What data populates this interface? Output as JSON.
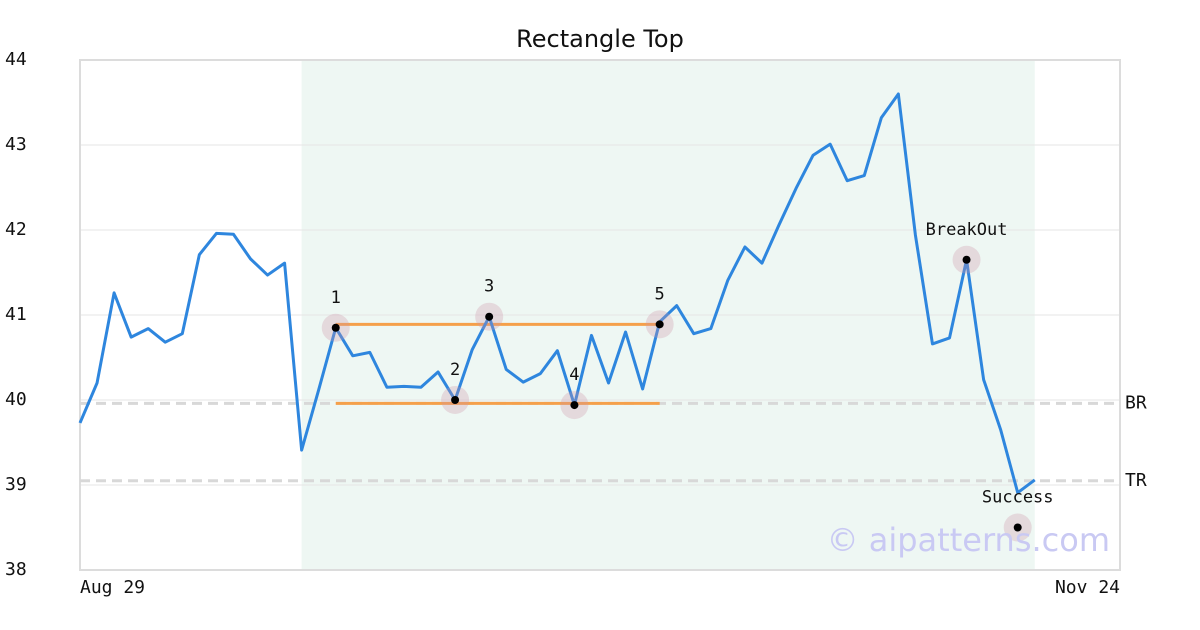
{
  "chart_data": {
    "type": "line",
    "title": "Rectangle Top",
    "categories": [
      "Aug 29",
      null,
      null,
      null,
      null,
      null,
      null,
      null,
      null,
      null,
      null,
      null,
      null,
      null,
      null,
      null,
      null,
      null,
      null,
      null,
      null,
      null,
      null,
      null,
      null,
      null,
      null,
      null,
      null,
      null,
      null,
      null,
      null,
      null,
      null,
      null,
      null,
      null,
      null,
      null,
      null,
      null,
      null,
      null,
      null,
      null,
      null,
      null,
      null,
      null,
      null,
      null,
      null,
      null,
      null,
      null,
      null,
      null,
      null,
      null,
      null,
      "Nov 24"
    ],
    "values": [
      39.73,
      40.2,
      41.26,
      40.74,
      40.84,
      40.68,
      40.78,
      41.71,
      41.96,
      41.95,
      41.66,
      41.47,
      41.61,
      39.41,
      40.12,
      40.85,
      40.52,
      40.56,
      40.15,
      40.16,
      40.15,
      40.33,
      40.0,
      40.59,
      40.98,
      40.36,
      40.21,
      40.31,
      40.58,
      39.94,
      40.76,
      40.2,
      40.8,
      40.13,
      40.92,
      41.11,
      40.78,
      40.84,
      41.41,
      41.8,
      41.61,
      42.06,
      42.49,
      42.88,
      43.01,
      42.58,
      42.64,
      43.32,
      43.6,
      41.94,
      40.66,
      40.73,
      41.65,
      40.24,
      39.65,
      38.91,
      39.06,
      null,
      null,
      null,
      null,
      null
    ],
    "color": "#2e86de",
    "ylim": [
      38,
      44
    ],
    "yticks": [
      38,
      39,
      40,
      41,
      42,
      43,
      44
    ],
    "grid": true,
    "pattern_region": [
      13,
      56
    ],
    "pattern_lines": {
      "color": "#f5a04a",
      "lines": [
        {
          "value": 40.89,
          "x": [
            15,
            34
          ]
        },
        {
          "value": 39.96,
          "x": [
            15,
            34
          ]
        }
      ]
    },
    "levels": [
      {
        "label": "BR",
        "value": 39.96
      },
      {
        "label": "TR",
        "value": 39.05
      }
    ],
    "annotations": [
      {
        "label": "1",
        "x": 15,
        "value": 40.85
      },
      {
        "label": "2",
        "x": 22,
        "value": 40.0
      },
      {
        "label": "3",
        "x": 24,
        "value": 40.98
      },
      {
        "label": "4",
        "x": 29,
        "value": 39.94
      },
      {
        "label": "5",
        "x": 34,
        "value": 40.89
      },
      {
        "label": "BreakOut",
        "x": 52,
        "value": 41.65
      },
      {
        "label": "Success",
        "x": 55,
        "value": 38.5
      }
    ],
    "watermark": "© aipatterns.com"
  }
}
